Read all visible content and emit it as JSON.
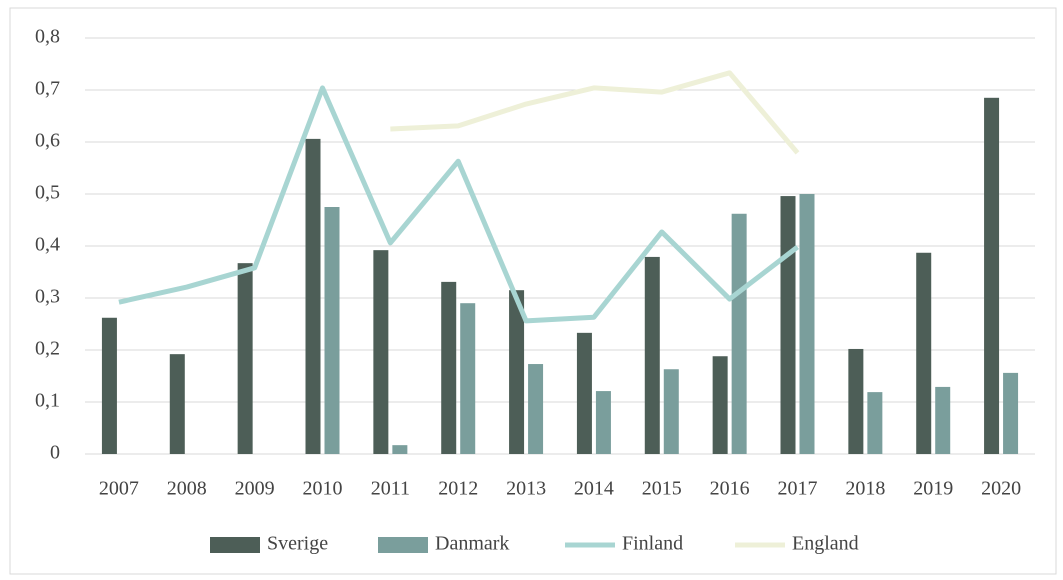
{
  "chart_data": {
    "type": "bar",
    "categories": [
      "2007",
      "2008",
      "2009",
      "2010",
      "2011",
      "2012",
      "2013",
      "2014",
      "2015",
      "2016",
      "2017",
      "2018",
      "2019",
      "2020"
    ],
    "series": [
      {
        "name": "Sverige",
        "type": "bar",
        "color": "#4d5e57",
        "values": [
          0.262,
          0.192,
          0.367,
          0.606,
          0.392,
          0.331,
          0.315,
          0.233,
          0.379,
          0.188,
          0.496,
          0.202,
          0.387,
          0.685
        ]
      },
      {
        "name": "Danmark",
        "type": "bar",
        "color": "#7a9e9c",
        "values": [
          null,
          null,
          null,
          0.475,
          0.017,
          0.29,
          0.173,
          0.121,
          0.163,
          0.462,
          0.5,
          0.119,
          0.129,
          0.156
        ]
      },
      {
        "name": "Finland",
        "type": "line",
        "color": "#a8d5d2",
        "values": [
          0.292,
          0.321,
          0.358,
          0.704,
          0.406,
          0.563,
          0.256,
          0.263,
          0.427,
          0.298,
          0.398,
          null,
          null,
          null
        ]
      },
      {
        "name": "England",
        "type": "line",
        "color": "#eef0d8",
        "values": [
          null,
          null,
          null,
          null,
          0.625,
          0.631,
          0.673,
          0.704,
          0.696,
          0.733,
          0.579,
          null,
          null,
          null
        ]
      }
    ],
    "ylim": [
      0,
      0.8
    ],
    "yticks": [
      0,
      {
        "value": 0.1,
        "label": "0,1"
      },
      {
        "value": 0.2,
        "label": "0,2"
      },
      {
        "value": 0.3,
        "label": "0,3"
      },
      {
        "value": 0.4,
        "label": "0,4"
      },
      {
        "value": 0.5,
        "label": "0,5"
      },
      {
        "value": 0.6,
        "label": "0,6"
      },
      {
        "value": 0.7,
        "label": "0,7"
      },
      {
        "value": 0.8,
        "label": "0,8"
      }
    ],
    "grid": true,
    "legend": "bottom"
  }
}
